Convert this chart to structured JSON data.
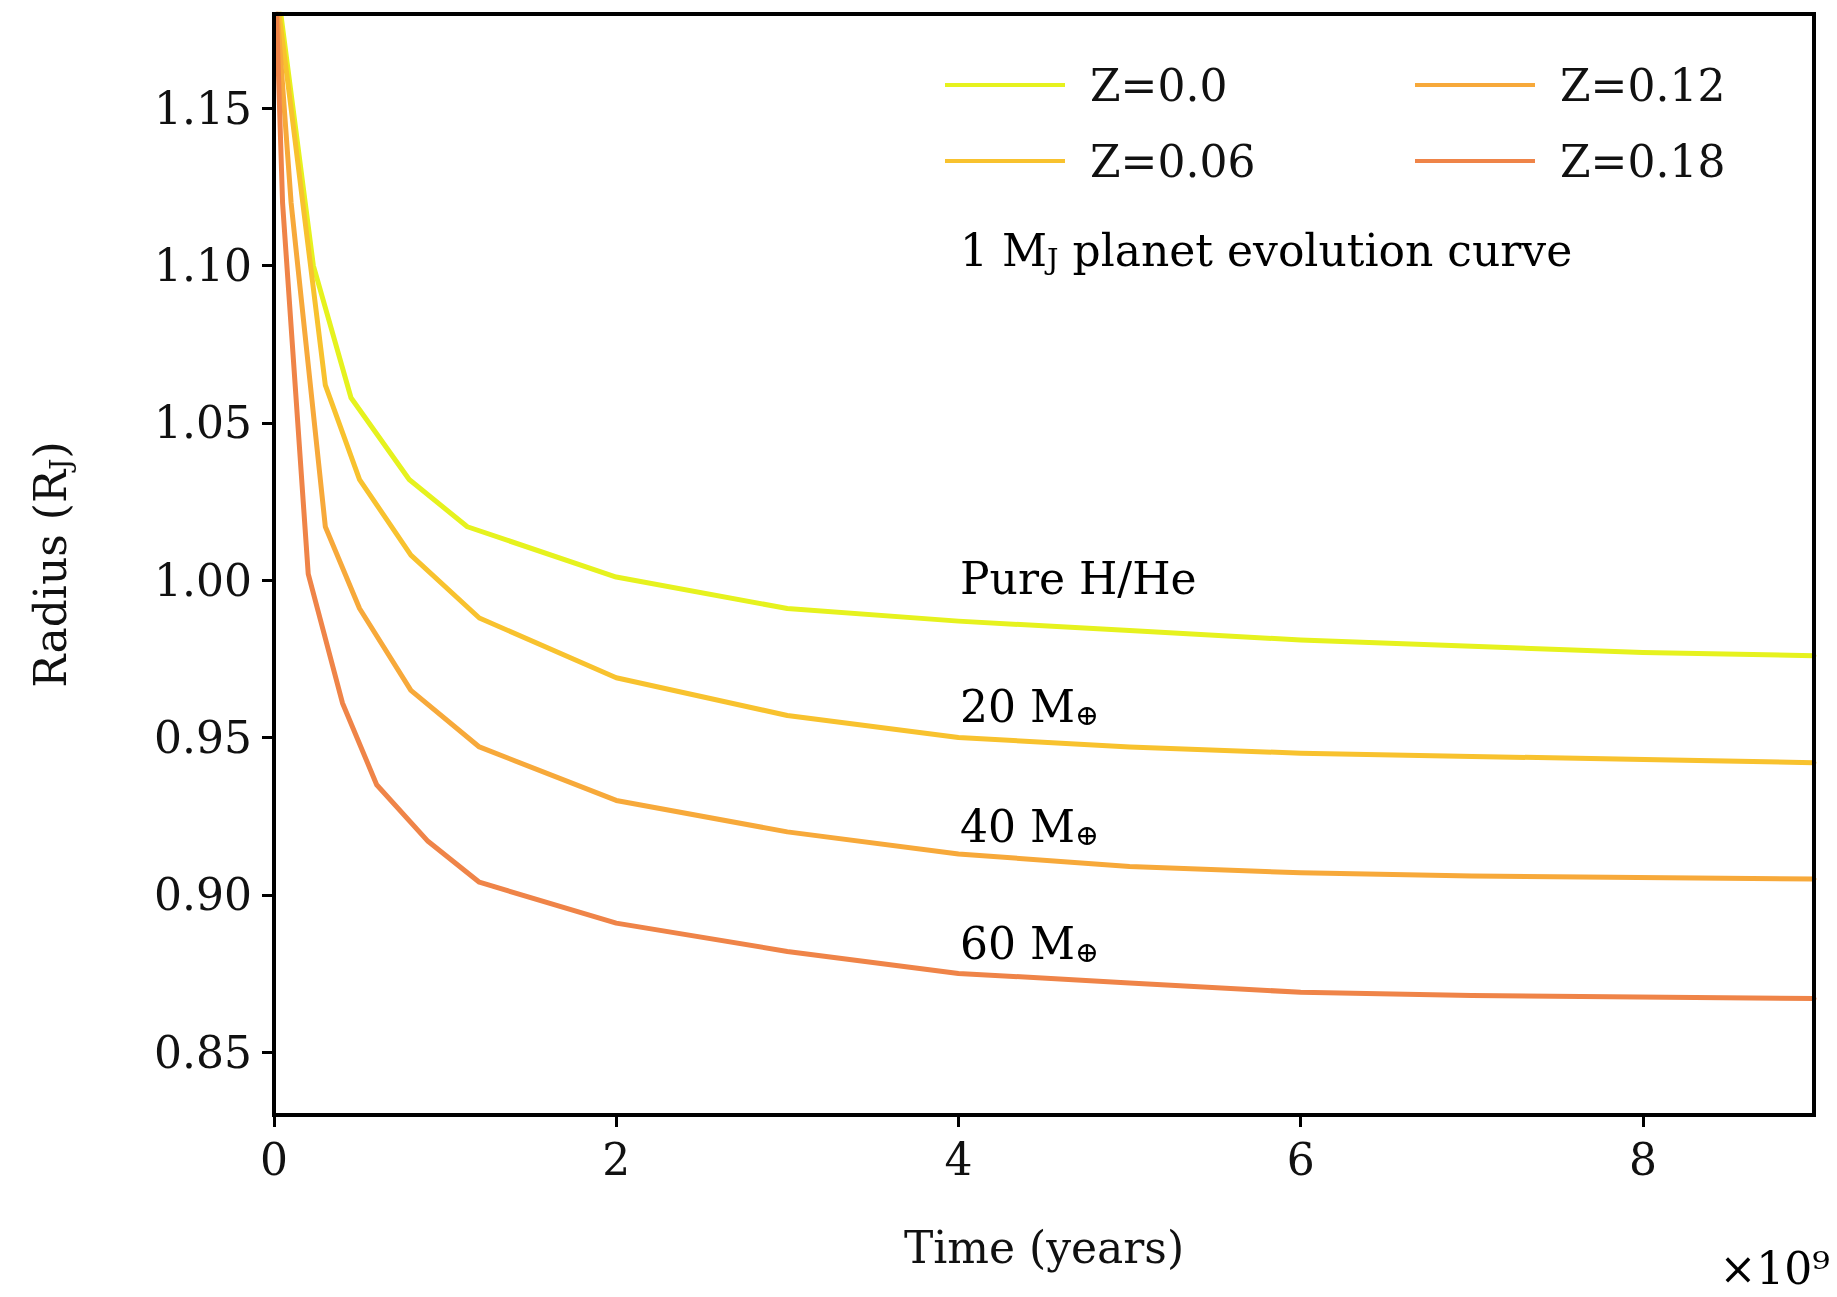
{
  "chart_data": {
    "type": "line",
    "xlabel": "Time (years)",
    "ylabel": "Radius (R$_{J}$)",
    "xlim": [
      0,
      9
    ],
    "xticks": [
      0,
      2,
      4,
      6,
      8
    ],
    "ylim": [
      0.83,
      1.18
    ],
    "yticks": [
      0.85,
      {
        "value": 0.9,
        "label": "0.90"
      },
      0.95,
      {
        "value": 1.0,
        "label": "1.00"
      },
      1.05,
      {
        "value": 1.1,
        "label": "1.10"
      },
      1.15
    ],
    "legend": "top right",
    "grid": false,
    "marker": "none",
    "line_style": "solid",
    "annotations": [
      "1 M$_{J}$ planet evolution curve",
      "×10⁹",
      "Pure H/He",
      "20 M$_{⊕}$",
      "40 M$_{⊕}$",
      "60 M$_{⊕}$"
    ],
    "series": [
      {
        "name": "Z=0.0",
        "color": "#e6f21e",
        "x": [
          0.04,
          0.23,
          0.45,
          0.79,
          1.13,
          2,
          3,
          4,
          5,
          6,
          7,
          8,
          9
        ],
        "values": [
          1.18,
          1.1,
          1.058,
          1.032,
          1.017,
          1.001,
          0.991,
          0.987,
          0.984,
          0.981,
          0.979,
          0.977,
          0.976
        ]
      },
      {
        "name": "Z=0.06",
        "color": "#f8c22e",
        "x": [
          0.03,
          0.1,
          0.3,
          0.5,
          0.8,
          1.2,
          2,
          3,
          4,
          5,
          6,
          7,
          9
        ],
        "values": [
          1.18,
          1.15,
          1.062,
          1.032,
          1.008,
          0.988,
          0.969,
          0.957,
          0.95,
          0.947,
          0.945,
          0.944,
          0.942
        ]
      },
      {
        "name": "Z=0.12",
        "color": "#f7a93a",
        "x": [
          0.02,
          0.1,
          0.3,
          0.5,
          0.8,
          1.2,
          2,
          3,
          4,
          5,
          6,
          7,
          9
        ],
        "values": [
          1.18,
          1.12,
          1.017,
          0.991,
          0.965,
          0.947,
          0.93,
          0.92,
          0.913,
          0.909,
          0.907,
          0.906,
          0.905
        ]
      },
      {
        "name": "Z=0.18",
        "color": "#ef8448",
        "x": [
          0.015,
          0.05,
          0.2,
          0.4,
          0.6,
          0.9,
          1.2,
          2,
          3,
          4,
          5,
          6,
          7,
          9
        ],
        "values": [
          1.18,
          1.12,
          1.002,
          0.961,
          0.935,
          0.917,
          0.904,
          0.891,
          0.882,
          0.875,
          0.872,
          0.869,
          0.868,
          0.867
        ]
      }
    ]
  }
}
